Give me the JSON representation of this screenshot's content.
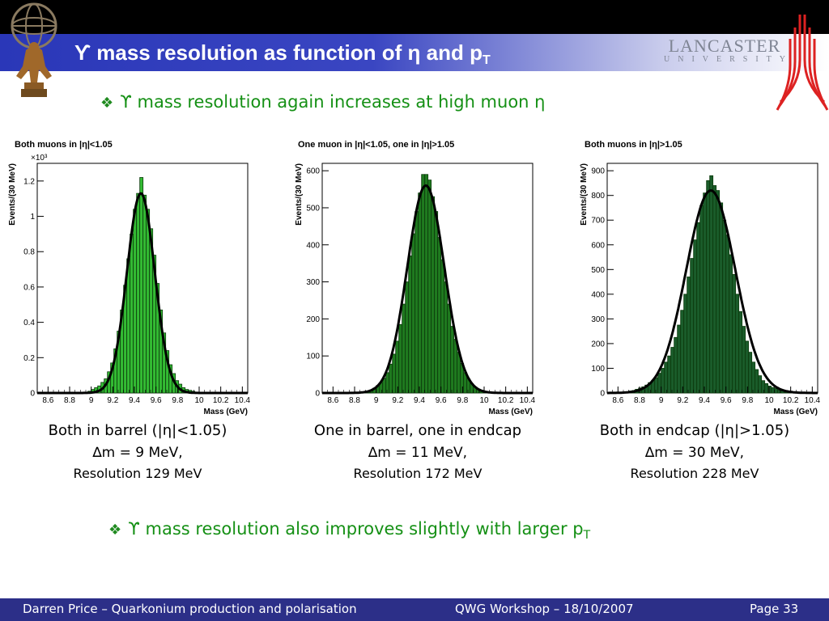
{
  "slide": {
    "title_main": "ϒ mass resolution as function of η and p",
    "title_sub": "T",
    "bullet1": "ϒ mass resolution again increases at high muon η",
    "bullet2_main": "ϒ mass resolution also improves slightly with larger p",
    "bullet2_sub": "T",
    "bullet_symbol": "❖",
    "logo_lancaster": "LANCASTER",
    "logo_university": "UNIVERSITY"
  },
  "captions": [
    {
      "line1": "Both in barrel (|η|<1.05)",
      "line2": "∆m = 9 MeV,",
      "line3": "Resolution 129 MeV"
    },
    {
      "line1": "One in barrel, one in endcap",
      "line2": "∆m = 11 MeV,",
      "line3": "Resolution 172 MeV"
    },
    {
      "line1": "Both in endcap (|η|>1.05)",
      "line2": "∆m = 30 MeV,",
      "line3": "Resolution 228 MeV"
    }
  ],
  "footer": {
    "left": "Darren Price – Quarkonium production and polarisation",
    "center": "QWG Workshop – 18/10/2007",
    "right": "Page 33"
  },
  "chart_data": [
    {
      "type": "bar",
      "title": "Both muons in |η|<1.05",
      "xlabel": "Mass (GeV)",
      "ylabel": "Events/(30 MeV)",
      "ylabel_multiplier": "×10³",
      "xlim": [
        8.5,
        10.45
      ],
      "ylim": [
        0,
        1.3
      ],
      "xticks": [
        "8.6",
        "8.8",
        "9",
        "9.2",
        "9.4",
        "9.6",
        "9.8",
        "10",
        "10.2",
        "10.4"
      ],
      "yticks": [
        "0",
        "0.2",
        "0.4",
        "0.6",
        "0.8",
        "1",
        "1.2"
      ],
      "fill": "#33bb33",
      "fit": {
        "mean": 9.46,
        "sigma": 0.129,
        "amplitude": 1.13
      },
      "x": [
        8.985,
        9.015,
        9.045,
        9.075,
        9.105,
        9.135,
        9.165,
        9.195,
        9.225,
        9.255,
        9.285,
        9.315,
        9.345,
        9.375,
        9.405,
        9.435,
        9.465,
        9.495,
        9.525,
        9.555,
        9.585,
        9.615,
        9.645,
        9.675,
        9.705,
        9.735,
        9.765,
        9.795,
        9.825,
        9.855,
        9.885,
        9.915,
        9.945
      ],
      "values": [
        0.01,
        0.02,
        0.03,
        0.04,
        0.06,
        0.08,
        0.12,
        0.17,
        0.25,
        0.35,
        0.47,
        0.61,
        0.76,
        0.9,
        1.04,
        1.13,
        1.22,
        1.12,
        1.04,
        0.93,
        0.78,
        0.62,
        0.47,
        0.34,
        0.24,
        0.16,
        0.11,
        0.07,
        0.05,
        0.03,
        0.02,
        0.015,
        0.01
      ]
    },
    {
      "type": "bar",
      "title": "One muon in |η|<1.05, one in |η|>1.05",
      "xlabel": "Mass (GeV)",
      "ylabel": "Events/(30 MeV)",
      "xlim": [
        8.5,
        10.45
      ],
      "ylim": [
        0,
        620
      ],
      "xticks": [
        "8.6",
        "8.8",
        "9",
        "9.2",
        "9.4",
        "9.6",
        "9.8",
        "10",
        "10.2",
        "10.4"
      ],
      "yticks": [
        "0",
        "100",
        "200",
        "300",
        "400",
        "500",
        "600"
      ],
      "fill": "#1f7a1f",
      "fit": {
        "mean": 9.46,
        "sigma": 0.172,
        "amplitude": 560
      },
      "x": [
        8.895,
        8.925,
        8.955,
        8.985,
        9.015,
        9.045,
        9.075,
        9.105,
        9.135,
        9.165,
        9.195,
        9.225,
        9.255,
        9.285,
        9.315,
        9.345,
        9.375,
        9.405,
        9.435,
        9.465,
        9.495,
        9.525,
        9.555,
        9.585,
        9.615,
        9.645,
        9.675,
        9.705,
        9.735,
        9.765,
        9.795,
        9.825,
        9.855,
        9.885,
        9.915,
        9.945,
        9.975,
        10.005
      ],
      "values": [
        3,
        5,
        8,
        13,
        20,
        28,
        40,
        55,
        78,
        105,
        140,
        185,
        240,
        300,
        370,
        430,
        490,
        540,
        590,
        590,
        575,
        530,
        490,
        420,
        360,
        300,
        240,
        180,
        145,
        110,
        80,
        55,
        38,
        25,
        16,
        10,
        6,
        4
      ]
    },
    {
      "type": "bar",
      "title": "Both muons in |η|>1.05",
      "xlabel": "Mass (GeV)",
      "ylabel": "Events/(30 MeV)",
      "xlim": [
        8.5,
        10.45
      ],
      "ylim": [
        0,
        930
      ],
      "xticks": [
        "8.6",
        "8.8",
        "9",
        "9.2",
        "9.4",
        "9.6",
        "9.8",
        "10",
        "10.2",
        "10.4"
      ],
      "yticks": [
        "0",
        "100",
        "200",
        "300",
        "400",
        "500",
        "600",
        "700",
        "800",
        "900"
      ],
      "fill": "#1a5c2a",
      "fit": {
        "mean": 9.46,
        "sigma": 0.228,
        "amplitude": 820
      },
      "x": [
        8.685,
        8.715,
        8.745,
        8.775,
        8.805,
        8.835,
        8.865,
        8.895,
        8.925,
        8.955,
        8.985,
        9.015,
        9.045,
        9.075,
        9.105,
        9.135,
        9.165,
        9.195,
        9.225,
        9.255,
        9.285,
        9.315,
        9.345,
        9.375,
        9.405,
        9.435,
        9.465,
        9.495,
        9.525,
        9.555,
        9.585,
        9.615,
        9.645,
        9.675,
        9.705,
        9.735,
        9.765,
        9.795,
        9.825,
        9.855,
        9.885,
        9.915,
        9.945,
        9.975,
        10.005,
        10.035,
        10.065,
        10.095,
        10.125,
        10.155,
        10.185,
        10.215
      ],
      "values": [
        5,
        8,
        10,
        15,
        20,
        25,
        32,
        42,
        50,
        62,
        80,
        100,
        125,
        150,
        185,
        225,
        275,
        335,
        400,
        470,
        545,
        620,
        690,
        760,
        810,
        860,
        880,
        840,
        820,
        770,
        700,
        640,
        560,
        480,
        400,
        330,
        270,
        210,
        165,
        125,
        95,
        70,
        50,
        38,
        28,
        22,
        18,
        12,
        9,
        7,
        5,
        4
      ]
    }
  ]
}
